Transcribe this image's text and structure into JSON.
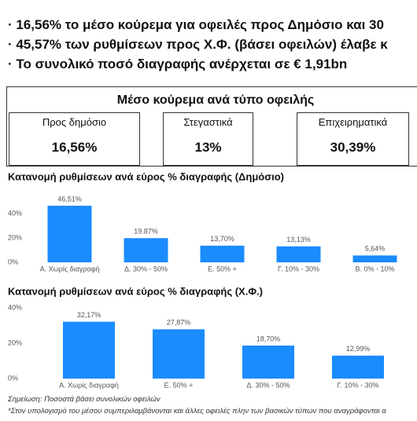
{
  "bullets": [
    "16,56% το μέσο κούρεμα για οφειλές προς Δημόσιο και 30",
    "45,57% των ρυθμίσεων προς Χ.Φ. (βάσει οφειλών) έλαβε κ",
    "Το συνολικό ποσό διαγραφής ανέρχεται σε € 1,91bn"
  ],
  "summary": {
    "title": "Μέσο κούρεμα ανά τύπο οφειλής",
    "cards": [
      {
        "label": "Προς δημόσιο",
        "value": "16,56%"
      },
      {
        "label": "Στεγαστικά",
        "value": "13%"
      },
      {
        "label": "Επιχειρηματικά",
        "value": "30,39%"
      }
    ]
  },
  "chart_data": [
    {
      "type": "bar",
      "title": "Κατανομή ρυθμίσεων ανά εύρος % διαγραφής (Δημόσιο)",
      "categories": [
        "Α. Χωρίς διαγραφή",
        "Δ. 30% - 50%",
        "Ε. 50% +",
        "Γ. 10% - 30%",
        "Β. 0% - 10%"
      ],
      "values": [
        46.51,
        19.87,
        13.7,
        13.13,
        5.64
      ],
      "value_labels": [
        "46,51%",
        "19.87%",
        "13,70%",
        "13,13%",
        "5,64%"
      ],
      "color": "#1a8cff",
      "ylim": [
        0,
        48
      ],
      "yticks": [
        {
          "value": 0,
          "label": "0%"
        },
        {
          "value": 20,
          "label": "20%"
        },
        {
          "value": 40,
          "label": "40%"
        }
      ],
      "grid": false
    },
    {
      "type": "bar",
      "title": "Κατανομή ρυθμίσεων ανά εύρος % διαγραφής (Χ.Φ.)",
      "categories": [
        "Α. Χωρίς διαγραφή",
        "Ε. 50% +",
        "Δ. 30% - 50%",
        "Γ. 10% - 30%"
      ],
      "values": [
        32.17,
        27.87,
        18.7,
        12.99
      ],
      "value_labels": [
        "32,17%",
        "27,87%",
        "18,70%",
        "12,99%"
      ],
      "color": "#1a8cff",
      "ylim": [
        0,
        40
      ],
      "yticks": [
        {
          "value": 0,
          "label": "0%"
        },
        {
          "value": 20,
          "label": "20%"
        },
        {
          "value": 40,
          "label": "40%"
        }
      ],
      "grid": false
    }
  ],
  "notes": [
    "Σημείωση: Ποσοστά βάσει συνολικών οφειλών",
    "*Στον υπολογισμό του μέσου συμπεριλαμβάνονται και άλλες οφειλές πλην των βασικών τύπων που αναγράφονται α"
  ]
}
